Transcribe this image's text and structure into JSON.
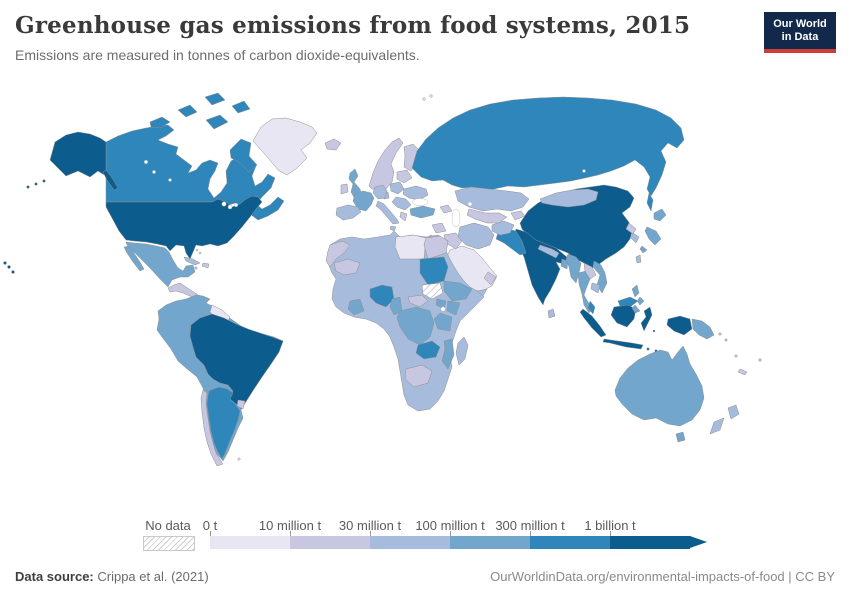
{
  "header": {
    "title": "Greenhouse gas emissions from food systems, 2015",
    "subtitle": "Emissions are measured in tonnes of carbon dioxide-equivalents.",
    "logo_line1": "Our World",
    "logo_line2": "in Data",
    "logo_bg": "#12294b",
    "logo_accent": "#ce3e36"
  },
  "legend": {
    "no_data_label": "No data",
    "ticks": [
      "0 t",
      "10 million t",
      "30 million t",
      "100 million t",
      "300 million t",
      "1 billion t"
    ],
    "colors": [
      "#e8e6f2",
      "#c7c7e1",
      "#a7bcdd",
      "#72a6cc",
      "#2f86ba",
      "#0d5c8e"
    ],
    "border_color": "#8f8f8f"
  },
  "footer": {
    "source_prefix": "Data source:",
    "source": " Crippa et al. (2021)",
    "right": "OurWorldinData.org/environmental-impacts-of-food | CC BY"
  },
  "chart_data": {
    "type": "choropleth",
    "title": "Greenhouse gas emissions from food systems, 2015",
    "unit": "tonnes of carbon dioxide-equivalents",
    "legend_position": "bottom",
    "bins": [
      {
        "label": "0 t",
        "color": "#e8e6f2"
      },
      {
        "label": "10 million t",
        "color": "#c7c7e1"
      },
      {
        "label": "30 million t",
        "color": "#a7bcdd"
      },
      {
        "label": "100 million t",
        "color": "#72a6cc"
      },
      {
        "label": "300 million t",
        "color": "#2f86ba"
      },
      {
        "label": "1 billion t",
        "color": "#0d5c8e"
      },
      {
        "label": "No data",
        "color": "hatch"
      }
    ],
    "regions": [
      {
        "id": "usa",
        "name": "United States",
        "bin": 5
      },
      {
        "id": "canada",
        "name": "Canada",
        "bin": 4
      },
      {
        "id": "greenland",
        "name": "Greenland",
        "bin": 0
      },
      {
        "id": "mexico",
        "name": "Mexico",
        "bin": 3
      },
      {
        "id": "central-america",
        "name": "Central America",
        "bin": 1
      },
      {
        "id": "cuba",
        "name": "Cuba",
        "bin": 2
      },
      {
        "id": "hispaniola",
        "name": "Hispaniola",
        "bin": 1
      },
      {
        "id": "bahamas",
        "name": "Bahamas",
        "bin": 0
      },
      {
        "id": "jamaica",
        "name": "Jamaica",
        "bin": 1
      },
      {
        "id": "south-america-base",
        "name": "Andean South America",
        "bin": 3
      },
      {
        "id": "guyanas",
        "name": "Guyanas",
        "bin": 0
      },
      {
        "id": "brazil",
        "name": "Brazil",
        "bin": 5
      },
      {
        "id": "argentina",
        "name": "Argentina",
        "bin": 4
      },
      {
        "id": "chile",
        "name": "Chile",
        "bin": 1
      },
      {
        "id": "uruguay",
        "name": "Uruguay",
        "bin": 1
      },
      {
        "id": "falklands",
        "name": "Falkland Islands",
        "bin": 0
      },
      {
        "id": "iceland",
        "name": "Iceland",
        "bin": 1
      },
      {
        "id": "norway-sweden",
        "name": "Norway and Sweden",
        "bin": 1
      },
      {
        "id": "finland",
        "name": "Finland",
        "bin": 1
      },
      {
        "id": "denmark",
        "name": "Denmark",
        "bin": 2
      },
      {
        "id": "uk",
        "name": "United Kingdom",
        "bin": 3
      },
      {
        "id": "ireland",
        "name": "Ireland",
        "bin": 1
      },
      {
        "id": "france",
        "name": "France",
        "bin": 3
      },
      {
        "id": "spain",
        "name": "Spain",
        "bin": 2
      },
      {
        "id": "germany",
        "name": "Germany",
        "bin": 2
      },
      {
        "id": "italy",
        "name": "Italy",
        "bin": 2
      },
      {
        "id": "poland",
        "name": "Poland",
        "bin": 2
      },
      {
        "id": "belarus-baltics",
        "name": "Belarus and Baltics",
        "bin": 1
      },
      {
        "id": "ukraine",
        "name": "Ukraine",
        "bin": 2
      },
      {
        "id": "romania-balkans",
        "name": "Romania and Balkans",
        "bin": 2
      },
      {
        "id": "greece",
        "name": "Greece",
        "bin": 1
      },
      {
        "id": "turkey",
        "name": "Turkey",
        "bin": 3
      },
      {
        "id": "russia",
        "name": "Russia",
        "bin": 4
      },
      {
        "id": "kazakhstan",
        "name": "Kazakhstan",
        "bin": 2
      },
      {
        "id": "uzbek-turkmen",
        "name": "Uzbekistan and Turkmenistan",
        "bin": 1
      },
      {
        "id": "kyrgyz-tajik",
        "name": "Kyrgyzstan and Tajikistan",
        "bin": 1
      },
      {
        "id": "caucasus",
        "name": "Caucasus",
        "bin": 1
      },
      {
        "id": "china",
        "name": "China",
        "bin": 5
      },
      {
        "id": "mongolia",
        "name": "Mongolia",
        "bin": 2
      },
      {
        "id": "india",
        "name": "India",
        "bin": 5
      },
      {
        "id": "pakistan",
        "name": "Pakistan",
        "bin": 4
      },
      {
        "id": "afghanistan",
        "name": "Afghanistan",
        "bin": 2
      },
      {
        "id": "nepal",
        "name": "Nepal",
        "bin": 2
      },
      {
        "id": "bangladesh",
        "name": "Bangladesh",
        "bin": 3
      },
      {
        "id": "sri-lanka",
        "name": "Sri Lanka",
        "bin": 2
      },
      {
        "id": "myanmar",
        "name": "Myanmar",
        "bin": 3
      },
      {
        "id": "thailand",
        "name": "Thailand",
        "bin": 3
      },
      {
        "id": "laos",
        "name": "Laos",
        "bin": 1
      },
      {
        "id": "vietnam",
        "name": "Vietnam",
        "bin": 3
      },
      {
        "id": "cambodia",
        "name": "Cambodia",
        "bin": 2
      },
      {
        "id": "malaysia",
        "name": "Malaysia",
        "bin": 4
      },
      {
        "id": "indonesia",
        "name": "Indonesia",
        "bin": 5
      },
      {
        "id": "png",
        "name": "Papua New Guinea",
        "bin": 3
      },
      {
        "id": "philippines",
        "name": "Philippines",
        "bin": 3
      },
      {
        "id": "taiwan",
        "name": "Taiwan",
        "bin": 2
      },
      {
        "id": "japan",
        "name": "Japan",
        "bin": 3
      },
      {
        "id": "south-korea",
        "name": "South Korea",
        "bin": 2
      },
      {
        "id": "north-korea",
        "name": "North Korea",
        "bin": 1
      },
      {
        "id": "saudi",
        "name": "Arabian Peninsula",
        "bin": 0
      },
      {
        "id": "yemen",
        "name": "Yemen",
        "bin": 2
      },
      {
        "id": "oman",
        "name": "Oman",
        "bin": 1
      },
      {
        "id": "iraq",
        "name": "Iraq",
        "bin": 1
      },
      {
        "id": "iran",
        "name": "Iran",
        "bin": 2
      },
      {
        "id": "syria",
        "name": "Syria",
        "bin": 1
      },
      {
        "id": "israel-jordan",
        "name": "Israel and Jordan",
        "bin": 1
      },
      {
        "id": "africa-base",
        "name": "Africa (other)",
        "bin": 2
      },
      {
        "id": "morocco",
        "name": "Morocco and W. Sahara",
        "bin": 1
      },
      {
        "id": "libya",
        "name": "Libya",
        "bin": 0
      },
      {
        "id": "egypt",
        "name": "Egypt",
        "bin": 1
      },
      {
        "id": "mauritania-mali",
        "name": "Mauritania and Mali",
        "bin": 1
      },
      {
        "id": "nigeria",
        "name": "Nigeria",
        "bin": 4
      },
      {
        "id": "ghana",
        "name": "Ghana and Côte d'Ivoire",
        "bin": 3
      },
      {
        "id": "cameroon",
        "name": "Cameroon",
        "bin": 3
      },
      {
        "id": "car",
        "name": "Central African Republic",
        "bin": 1
      },
      {
        "id": "sudan",
        "name": "Sudan",
        "bin": 4
      },
      {
        "id": "south-sudan",
        "name": "South Sudan",
        "bin": "nodata"
      },
      {
        "id": "ethiopia",
        "name": "Ethiopia",
        "bin": 3
      },
      {
        "id": "uganda",
        "name": "Uganda",
        "bin": 3
      },
      {
        "id": "kenya",
        "name": "Kenya",
        "bin": 3
      },
      {
        "id": "drc",
        "name": "Democratic Republic of Congo",
        "bin": 3
      },
      {
        "id": "tanzania",
        "name": "Tanzania",
        "bin": 3
      },
      {
        "id": "zambia",
        "name": "Zambia",
        "bin": 4
      },
      {
        "id": "mozambique",
        "name": "Mozambique",
        "bin": 3
      },
      {
        "id": "botswana-namibia",
        "name": "Botswana and Namibia",
        "bin": 1
      },
      {
        "id": "madagascar",
        "name": "Madagascar",
        "bin": 2
      },
      {
        "id": "australia",
        "name": "Australia",
        "bin": 3
      },
      {
        "id": "tasmania",
        "name": "Tasmania",
        "bin": 3
      },
      {
        "id": "new-zealand",
        "name": "New Zealand",
        "bin": 2
      },
      {
        "id": "pacific-islands",
        "name": "Pacific Islands",
        "bin": 1
      },
      {
        "id": "svalbard",
        "name": "Svalbard",
        "bin": 0
      }
    ]
  }
}
